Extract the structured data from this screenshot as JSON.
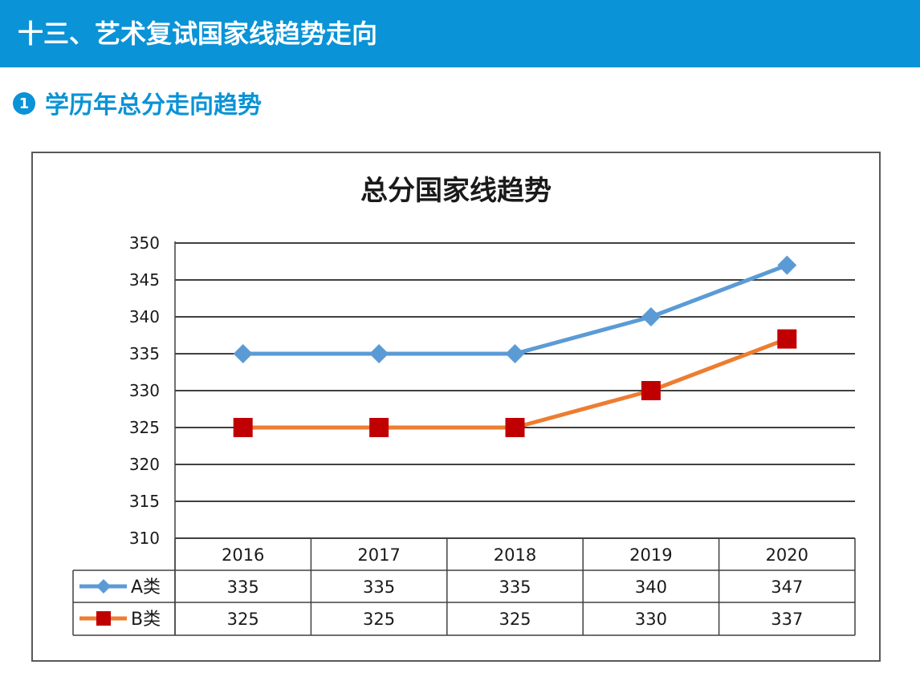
{
  "header": {
    "title": "十三、艺术复试国家线趋势走向"
  },
  "subhead": {
    "number": "1",
    "title": "学历年总分走向趋势"
  },
  "chart_data": {
    "type": "line",
    "title": "总分国家线趋势",
    "categories": [
      "2016",
      "2017",
      "2018",
      "2019",
      "2020"
    ],
    "ylim": [
      310,
      350
    ],
    "yticks": [
      310,
      315,
      320,
      325,
      330,
      335,
      340,
      345,
      350
    ],
    "grid": true,
    "legend": "data-table-left",
    "series": [
      {
        "name": "A类",
        "values": [
          335,
          335,
          335,
          340,
          347
        ],
        "color": "#5b9bd5",
        "marker": "diamond",
        "marker_color": "#5b9bd5"
      },
      {
        "name": "B类",
        "values": [
          325,
          325,
          325,
          330,
          337
        ],
        "color": "#ed7d31",
        "marker": "square",
        "marker_color": "#c00000"
      }
    ]
  }
}
